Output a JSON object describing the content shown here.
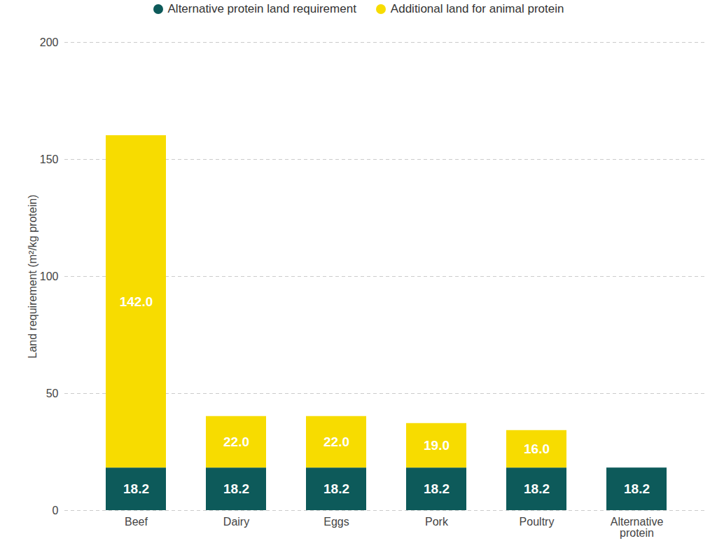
{
  "chart_data": {
    "type": "bar",
    "stacked": true,
    "categories": [
      "Beef",
      "Dairy",
      "Eggs",
      "Pork",
      "Poultry",
      "Alternative protein"
    ],
    "series": [
      {
        "name": "Alternative protein land requirement",
        "color": "#0d5a5a",
        "values": [
          18.2,
          18.2,
          18.2,
          18.2,
          18.2,
          18.2
        ],
        "value_labels": [
          "18.2",
          "18.2",
          "18.2",
          "18.2",
          "18.2",
          "18.2"
        ]
      },
      {
        "name": "Additional land for animal protein",
        "color": "#f7dc00",
        "values": [
          142,
          22,
          22,
          19,
          16,
          null
        ],
        "value_labels": [
          "142.0",
          "22.0",
          "22.0",
          "19.0",
          "16.0",
          null
        ]
      }
    ],
    "y_label": "Land requirement (m²/kg protein)",
    "ylim": [
      0,
      200
    ],
    "yticks": [
      0,
      50,
      100,
      150,
      200
    ],
    "grid": true,
    "legend": "top",
    "data_labels": true
  }
}
